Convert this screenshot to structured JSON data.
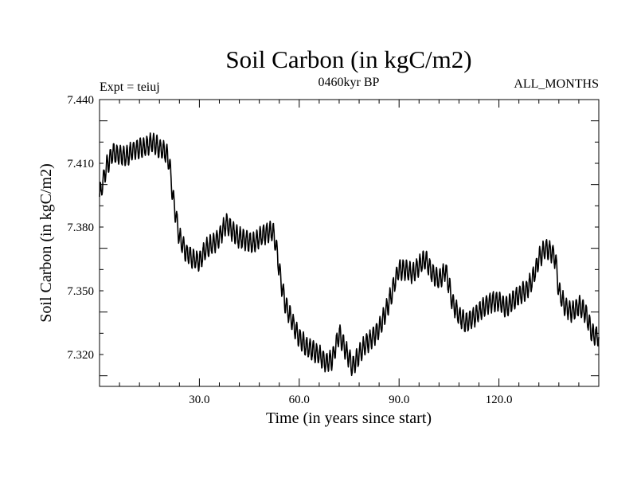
{
  "chart_data": {
    "type": "line",
    "title": "Soil Carbon (in kgC/m2)",
    "subtitle_center": "0460kyr BP",
    "subtitle_left": "Expt = teiuj",
    "subtitle_right": "ALL_MONTHS",
    "xlabel": "Time (in years since start)",
    "ylabel": "Soil Carbon (in kgC/m2)",
    "xlim": [
      0,
      150
    ],
    "ylim": [
      7.305,
      7.44
    ],
    "x_ticks": [
      30,
      60,
      90,
      120
    ],
    "x_tick_labels": [
      "30.0",
      "60.0",
      "90.0",
      "120.0"
    ],
    "y_ticks": [
      7.32,
      7.35,
      7.38,
      7.41,
      7.44
    ],
    "y_tick_labels": [
      "7.320",
      "7.350",
      "7.380",
      "7.410",
      "7.440"
    ],
    "series": [
      {
        "name": "Soil Carbon",
        "seasonal_amplitude": 0.0045,
        "x": [
          0,
          2,
          4,
          6,
          8,
          10,
          12,
          14,
          16,
          18,
          20,
          21,
          22,
          23,
          24,
          26,
          28,
          30,
          32,
          34,
          36,
          38,
          40,
          42,
          44,
          46,
          48,
          50,
          52,
          53,
          54,
          55,
          56,
          58,
          60,
          62,
          64,
          66,
          68,
          70,
          72,
          74,
          76,
          78,
          80,
          82,
          84,
          86,
          88,
          89,
          90,
          92,
          94,
          96,
          98,
          100,
          102,
          104,
          106,
          108,
          110,
          112,
          114,
          116,
          118,
          120,
          122,
          124,
          126,
          128,
          130,
          132,
          134,
          136,
          137,
          138,
          140,
          142,
          144,
          146,
          148,
          150
        ],
        "values": [
          7.394,
          7.408,
          7.415,
          7.414,
          7.413,
          7.416,
          7.417,
          7.418,
          7.42,
          7.417,
          7.415,
          7.41,
          7.395,
          7.385,
          7.375,
          7.368,
          7.365,
          7.364,
          7.37,
          7.372,
          7.375,
          7.382,
          7.378,
          7.375,
          7.374,
          7.372,
          7.375,
          7.377,
          7.378,
          7.372,
          7.36,
          7.35,
          7.343,
          7.335,
          7.328,
          7.324,
          7.322,
          7.32,
          7.316,
          7.318,
          7.33,
          7.322,
          7.314,
          7.32,
          7.325,
          7.328,
          7.332,
          7.34,
          7.35,
          7.356,
          7.36,
          7.36,
          7.358,
          7.362,
          7.365,
          7.358,
          7.355,
          7.36,
          7.345,
          7.338,
          7.335,
          7.337,
          7.34,
          7.343,
          7.345,
          7.345,
          7.342,
          7.345,
          7.348,
          7.35,
          7.355,
          7.365,
          7.37,
          7.368,
          7.365,
          7.35,
          7.342,
          7.34,
          7.343,
          7.34,
          7.33,
          7.328
        ]
      }
    ]
  }
}
